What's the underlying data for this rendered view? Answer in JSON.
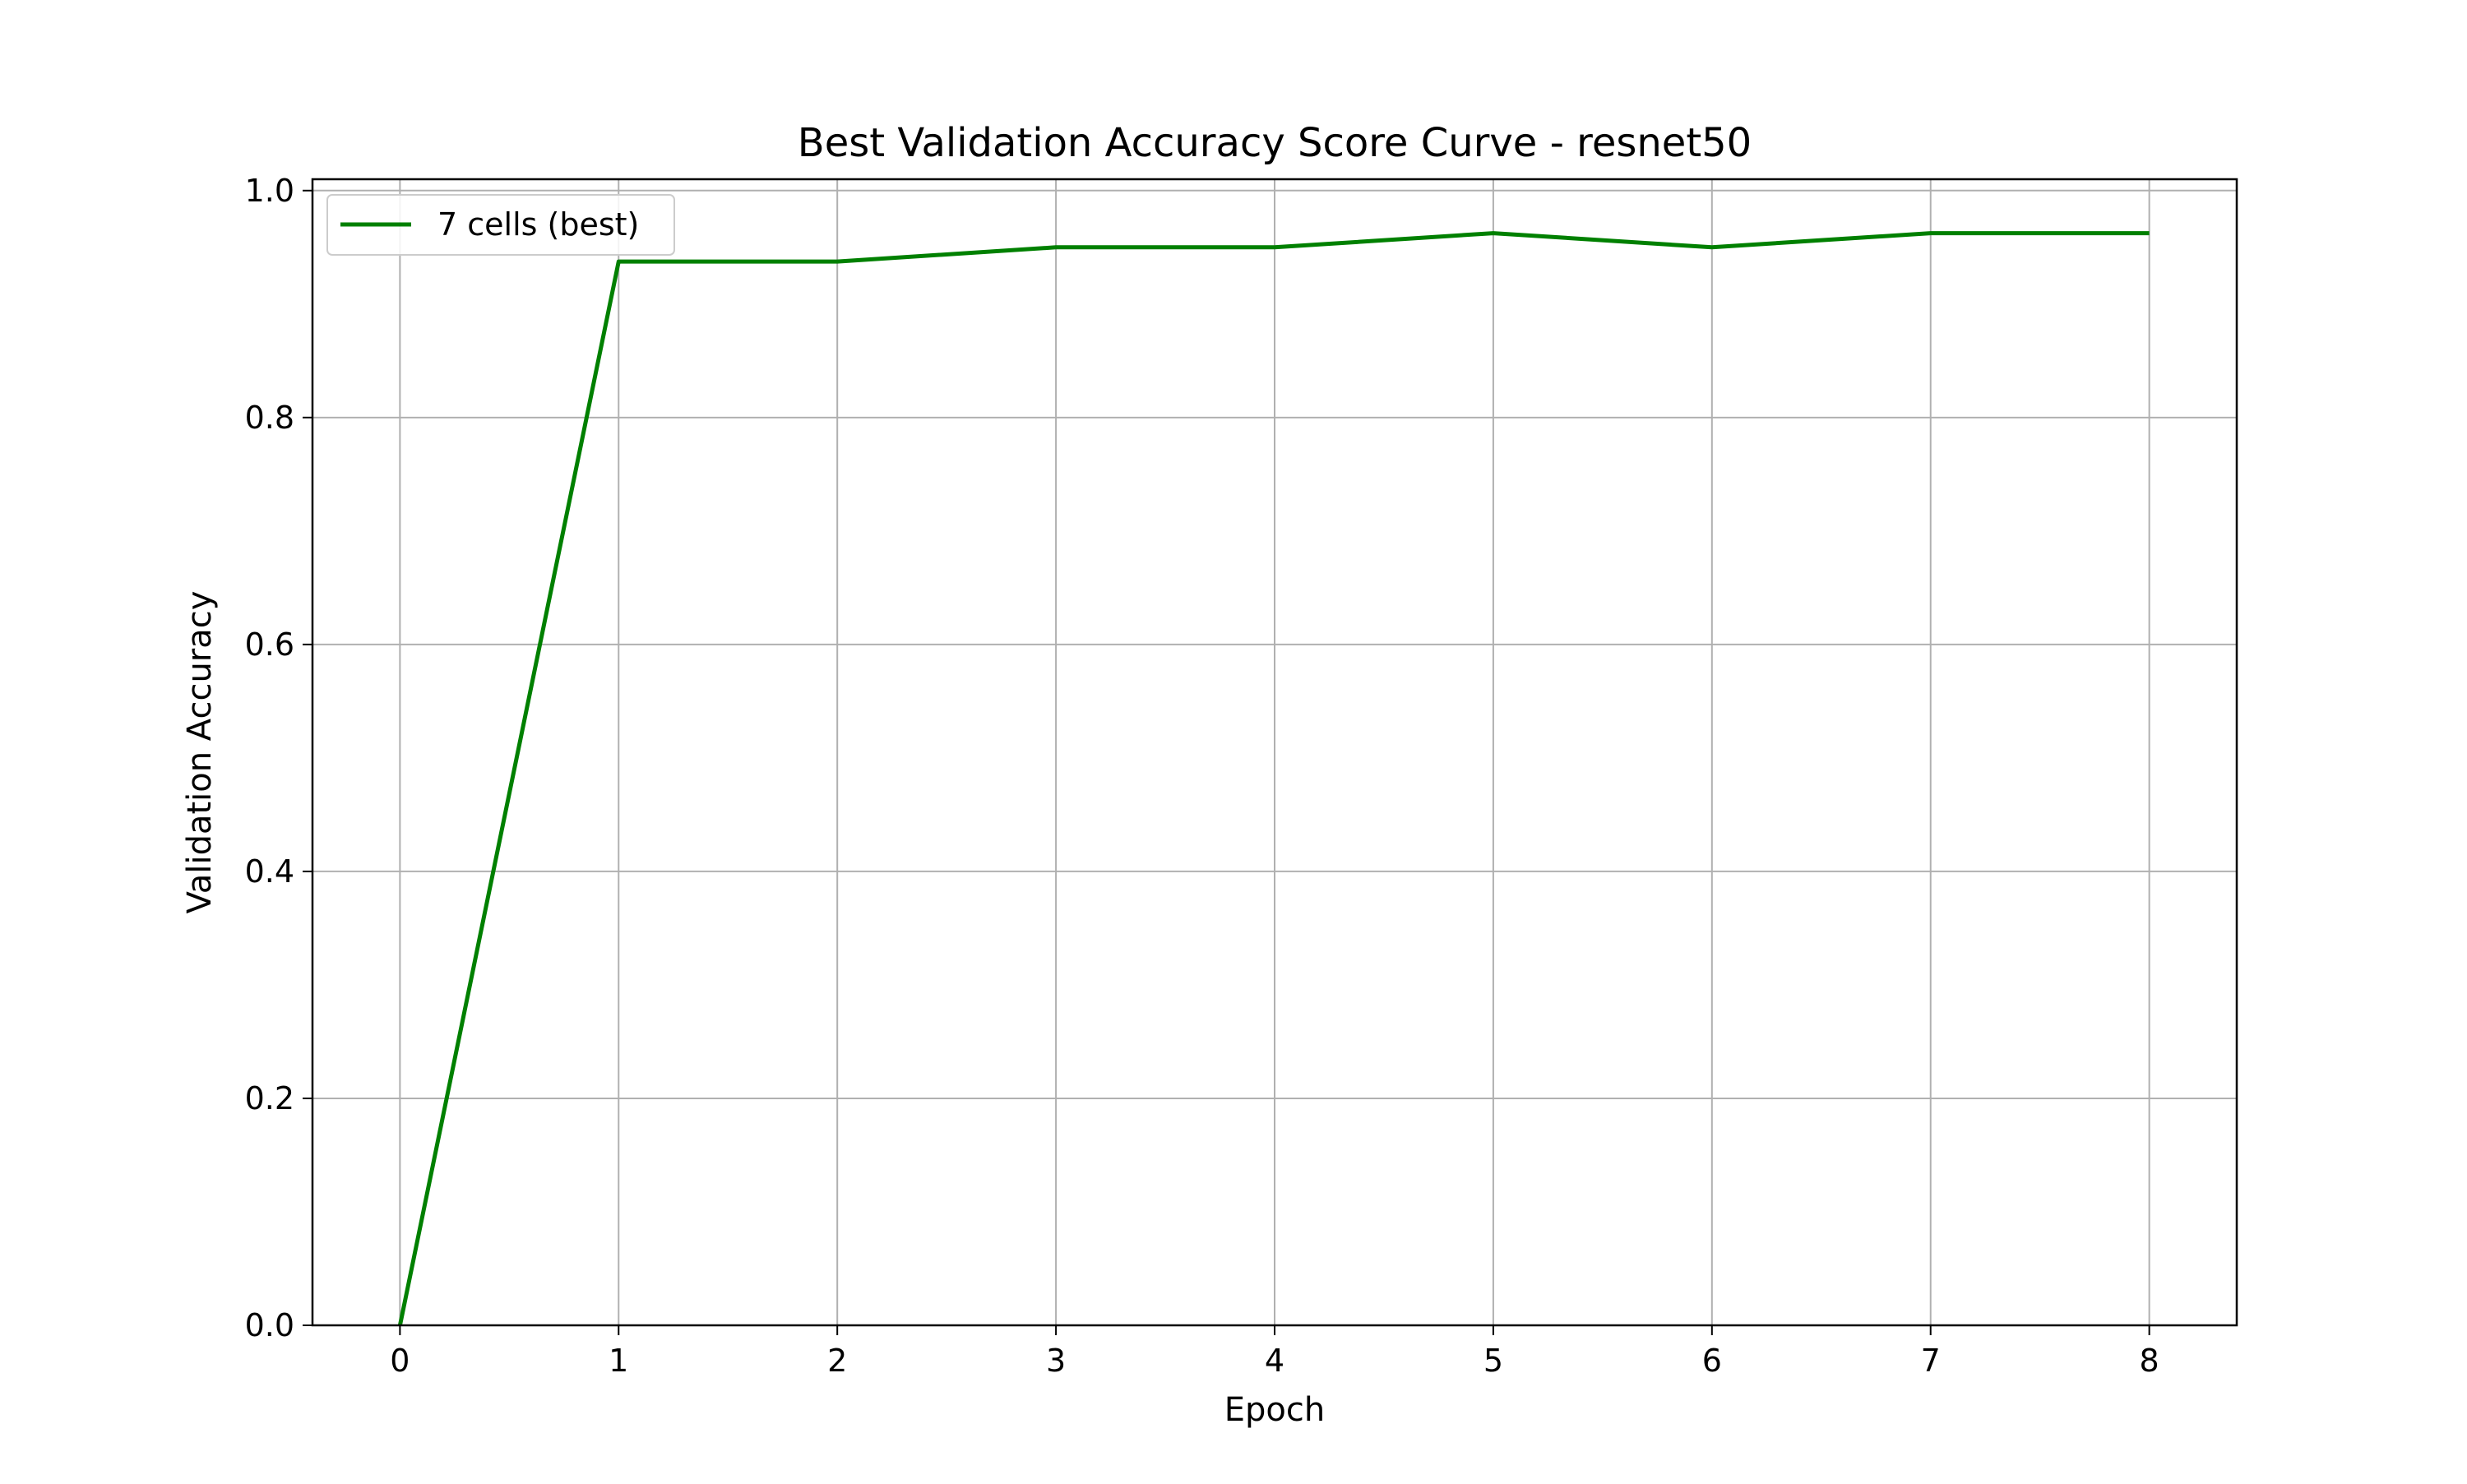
{
  "chart_data": {
    "type": "line",
    "title": "Best Validation Accuracy Score Curve - resnet50",
    "xlabel": "Epoch",
    "ylabel": "Validation Accuracy",
    "xlim": [
      -0.4,
      8.4
    ],
    "ylim": [
      0.0,
      1.01
    ],
    "xticks": [
      "0",
      "1",
      "2",
      "3",
      "4",
      "5",
      "6",
      "7",
      "8"
    ],
    "yticks": [
      "0.0",
      "0.2",
      "0.4",
      "0.6",
      "0.8",
      "1.0"
    ],
    "grid": true,
    "legend_position": "top-left",
    "series": [
      {
        "name": "7 cells (best)",
        "color": "#008000",
        "x": [
          0,
          1,
          2,
          3,
          4,
          5,
          6,
          7,
          8
        ],
        "y": [
          0.0,
          0.9375,
          0.9375,
          0.95,
          0.95,
          0.9625,
          0.95,
          0.9625,
          0.9625
        ]
      }
    ]
  }
}
